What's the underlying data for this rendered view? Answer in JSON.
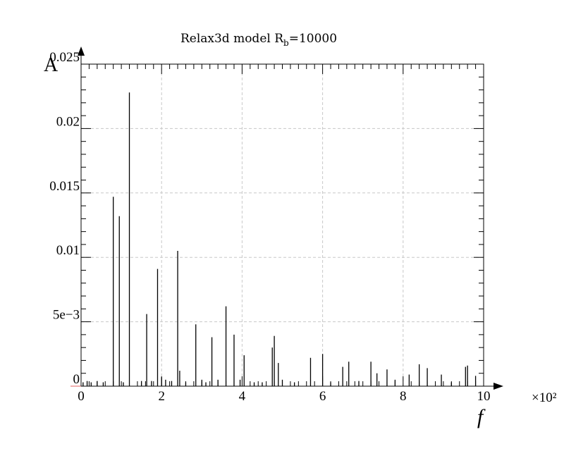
{
  "chart_data": {
    "type": "bar",
    "title": "Relax3d model R",
    "title_subscript": "b",
    "title_suffix": "=10000",
    "xlabel": "f",
    "ylabel": "A",
    "x_multiplier": "×10²",
    "xlim": [
      0,
      10
    ],
    "ylim": [
      0,
      0.025
    ],
    "grid": true,
    "x_ticks": [
      {
        "value": 0,
        "label": "0"
      },
      {
        "value": 2,
        "label": "2"
      },
      {
        "value": 4,
        "label": "4"
      },
      {
        "value": 6,
        "label": "6"
      },
      {
        "value": 8,
        "label": "8"
      },
      {
        "value": 10,
        "label": "10"
      }
    ],
    "y_ticks": [
      {
        "value": 0,
        "label": "0"
      },
      {
        "value": 0.005,
        "label": "5e−3"
      },
      {
        "value": 0.01,
        "label": "0.01"
      },
      {
        "value": 0.015,
        "label": "0.015"
      },
      {
        "value": 0.02,
        "label": "0.02"
      },
      {
        "value": 0.025,
        "label": "0.025"
      }
    ],
    "series": [
      {
        "x": [
          0.05,
          0.15,
          0.25,
          0.4,
          0.55,
          0.8,
          0.95,
          1.05,
          1.2,
          1.5,
          1.63,
          1.75,
          1.9,
          2.0,
          2.1,
          2.25,
          2.4,
          2.45,
          2.6,
          2.85,
          3.0,
          3.1,
          3.25,
          3.4,
          3.6,
          3.8,
          3.95,
          4.05,
          4.3,
          4.5,
          4.75,
          4.8,
          4.9,
          5.0,
          5.3,
          5.7,
          6.0,
          6.2,
          6.5,
          6.65,
          6.9,
          7.2,
          7.35,
          7.6,
          7.8,
          8.15,
          8.4,
          8.6,
          8.95,
          9.2,
          9.55,
          9.6,
          9.8
        ],
        "values": [
          0.0003,
          0.0004,
          0.0003,
          0.0004,
          0.0003,
          0.0147,
          0.0132,
          0.0003,
          0.0228,
          0.0004,
          0.0056,
          0.0004,
          0.0091,
          0.0007,
          0.0005,
          0.0004,
          0.0105,
          0.0012,
          0.0003,
          0.0048,
          0.0005,
          0.0003,
          0.0038,
          0.0005,
          0.0062,
          0.004,
          0.0005,
          0.0024,
          0.0003,
          0.0003,
          0.003,
          0.0039,
          0.0018,
          0.0005,
          0.0003,
          0.0022,
          0.0025,
          0.0003,
          0.0015,
          0.0019,
          0.0004,
          0.0019,
          0.001,
          0.0013,
          0.0005,
          0.0009,
          0.0017,
          0.0014,
          0.0009,
          0.0003,
          0.0015,
          0.0016,
          0.0008
        ]
      }
    ]
  }
}
